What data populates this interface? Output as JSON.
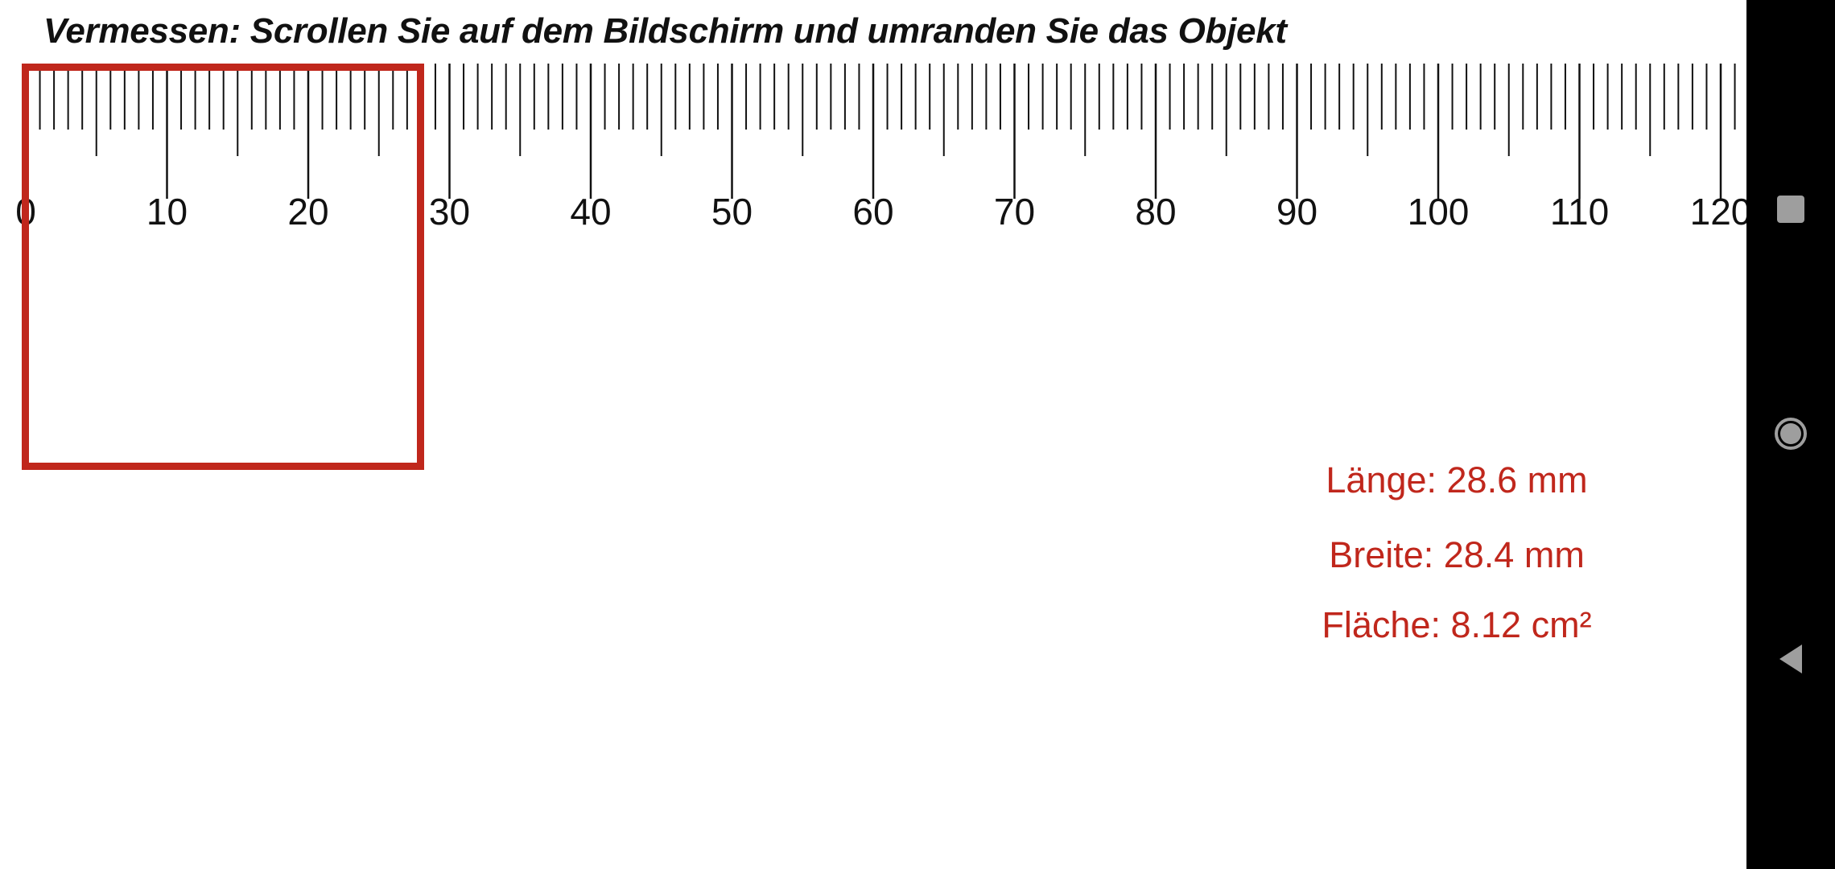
{
  "instruction": "Vermessen: Scrollen Sie auf dem Bildschirm und umranden Sie das Objekt",
  "ruler": {
    "unit": "mm",
    "labels": [
      "0",
      "10",
      "20",
      "30",
      "40",
      "50",
      "60",
      "70",
      "80",
      "90",
      "100",
      "110",
      "120"
    ]
  },
  "measurement": {
    "length": "Länge: 28.6 mm",
    "width": "Breite: 28.4 mm",
    "area": "Fläche: 8.12 cm²"
  },
  "colors": {
    "accent": "#c0271c",
    "ruler_ink": "#111111",
    "nav_bar": "#000000",
    "nav_icon": "#9e9e9e"
  },
  "nav": {
    "recents_icon": "square-icon",
    "home_icon": "circle-icon",
    "back_icon": "triangle-back-icon"
  }
}
